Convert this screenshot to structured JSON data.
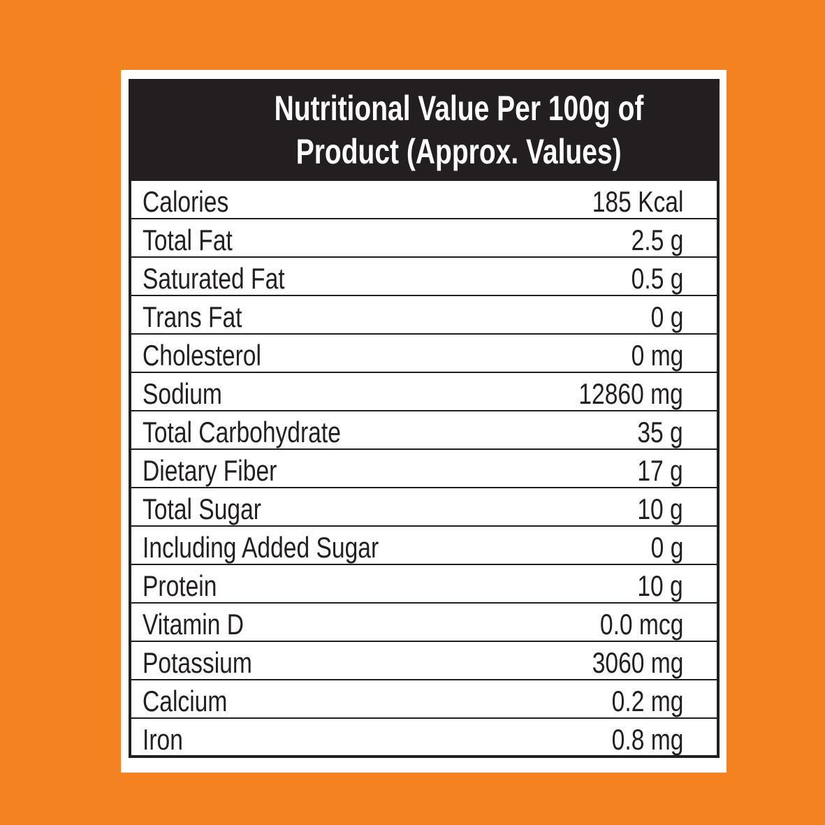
{
  "colors": {
    "background": "#f58220",
    "header": "#231f20",
    "panel": "#ffffff"
  },
  "title": {
    "line1": "Nutritional Value Per 100g of",
    "line2": "Product (Approx. Values)"
  },
  "rows": [
    {
      "label": "Calories",
      "value": "185 Kcal"
    },
    {
      "label": "Total Fat",
      "value": "2.5 g"
    },
    {
      "label": "Saturated Fat",
      "value": "0.5 g"
    },
    {
      "label": "Trans Fat",
      "value": "0 g"
    },
    {
      "label": "Cholesterol",
      "value": "0 mg"
    },
    {
      "label": "Sodium",
      "value": "12860 mg"
    },
    {
      "label": "Total Carbohydrate",
      "value": "35 g"
    },
    {
      "label": "Dietary Fiber",
      "value": "17 g"
    },
    {
      "label": "Total Sugar",
      "value": "10 g"
    },
    {
      "label": "Including Added Sugar",
      "value": "0 g"
    },
    {
      "label": "Protein",
      "value": "10 g"
    },
    {
      "label": "Vitamin D",
      "value": "0.0 mcg"
    },
    {
      "label": "Potassium",
      "value": "3060 mg"
    },
    {
      "label": "Calcium",
      "value": "0.2 mg"
    },
    {
      "label": "Iron",
      "value": "0.8 mg"
    }
  ]
}
